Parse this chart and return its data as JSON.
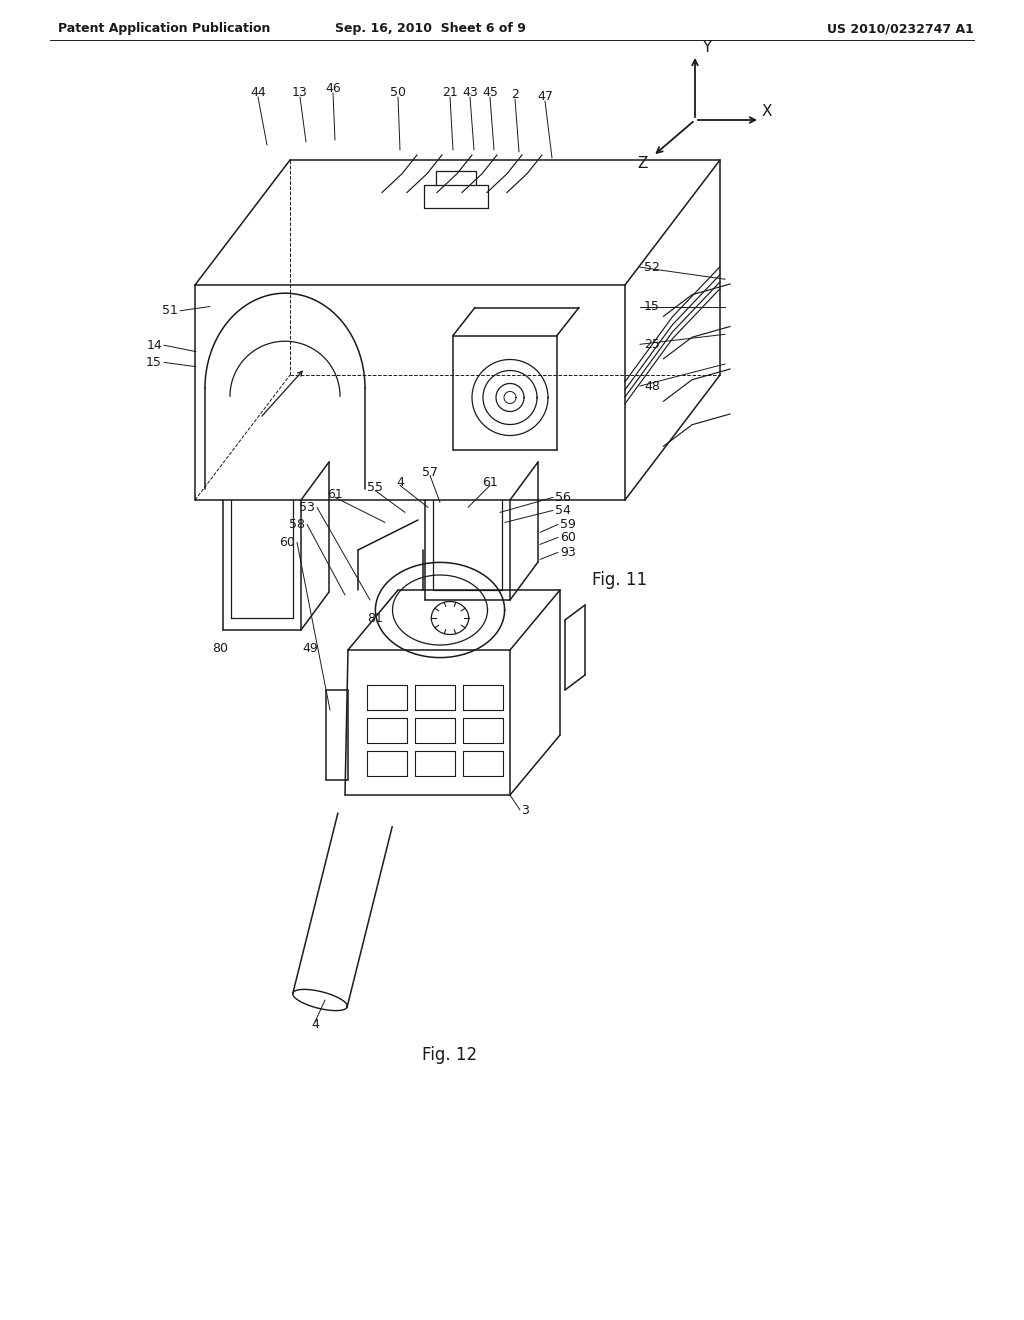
{
  "background_color": "#ffffff",
  "header_left": "Patent Application Publication",
  "header_center": "Sep. 16, 2010  Sheet 6 of 9",
  "header_right": "US 2010/0232747 A1",
  "fig11_label": "Fig. 11",
  "fig12_label": "Fig. 12",
  "line_color": "#1a1a1a",
  "text_color": "#1a1a1a",
  "header_font_size": 9,
  "label_font_size": 9,
  "fig_label_font_size": 12
}
